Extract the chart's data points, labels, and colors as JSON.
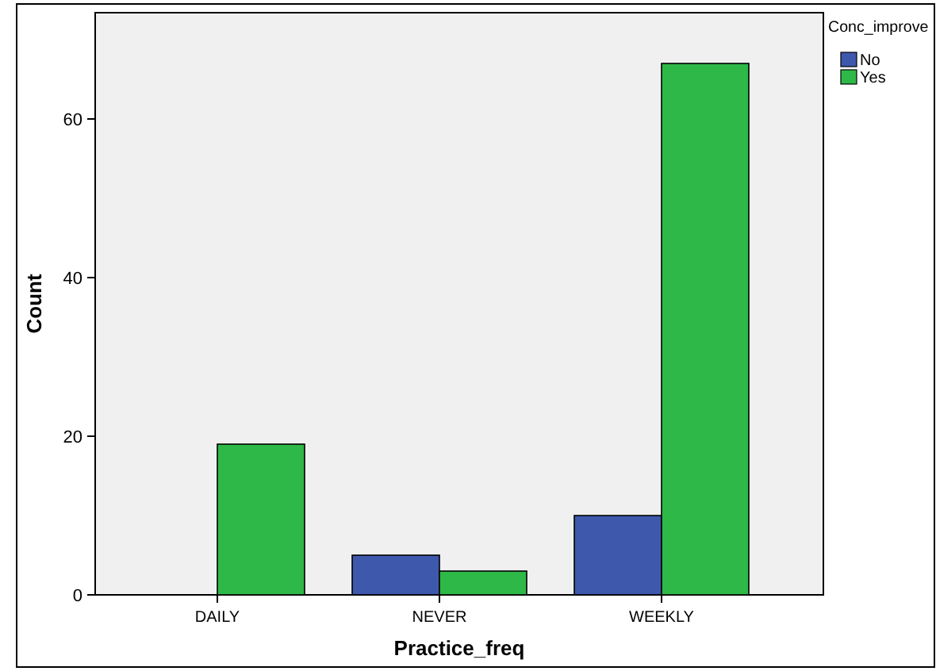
{
  "chart_data": {
    "type": "bar",
    "xlabel": "Practice_freq",
    "ylabel": "Count",
    "legend_title": "Conc_improve",
    "categories": [
      "DAILY",
      "NEVER",
      "WEEKLY"
    ],
    "series": [
      {
        "name": "No",
        "color": "#3e58ac",
        "values": [
          0,
          5,
          10
        ]
      },
      {
        "name": "Yes",
        "color": "#2eb848",
        "values": [
          19,
          3,
          67
        ]
      }
    ],
    "ylim": [
      0,
      73.4
    ],
    "yticks": [
      0,
      20,
      40,
      60
    ],
    "grid": false,
    "legend": "top right"
  }
}
